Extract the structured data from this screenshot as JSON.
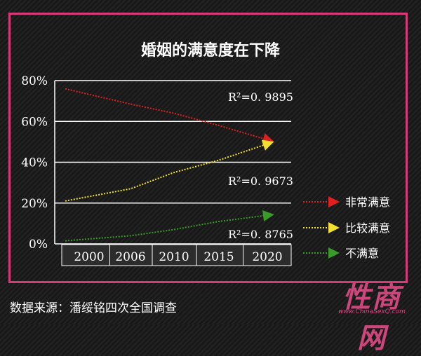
{
  "chart_data": {
    "type": "line",
    "title": "婚姻的满意度在下降",
    "x": [
      2000,
      2006,
      2010,
      2015,
      2020
    ],
    "xlabel": "",
    "ylabel": "",
    "ylim": [
      0,
      80
    ],
    "yticks": [
      "0%",
      "20%",
      "40%",
      "60%",
      "80%"
    ],
    "xticks": [
      "2000",
      "2006",
      "2010",
      "2015",
      "2020"
    ],
    "grid": "horizontal",
    "legend": "right",
    "series": [
      {
        "name": "非常满意",
        "color": "#e02020",
        "values": [
          76,
          68.5,
          64,
          58,
          51
        ]
      },
      {
        "name": "比较满意",
        "color": "#f2e030",
        "values": [
          21,
          27,
          35,
          41,
          49
        ]
      },
      {
        "name": "不满意",
        "color": "#3a9a2a",
        "values": [
          1.5,
          4,
          7,
          11,
          14
        ]
      }
    ],
    "annotations": [
      "R²=0. 9895",
      "R²=0. 9673",
      "R²=0. 8765"
    ]
  },
  "source": "数据来源：潘绥铭四次全国调查",
  "watermark": {
    "text": "性商网",
    "url": "www.ChinaSexQ.com",
    "color": "#e04a86"
  }
}
